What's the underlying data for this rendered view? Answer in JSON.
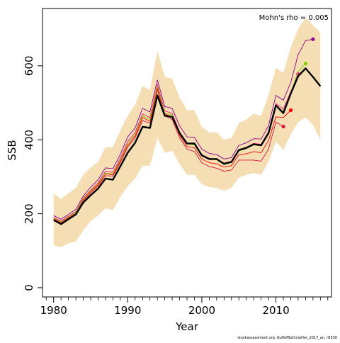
{
  "chart_data": {
    "type": "line",
    "xlabel": "Year",
    "ylabel": "SSB",
    "annotation": "Mohn's rho = 0.005",
    "credit": "stockassessment.org, GulfofBothniaHer_2017_an, r8330",
    "xlim": [
      1978.5,
      2017.5
    ],
    "ylim": [
      -25,
      755
    ],
    "xticks": [
      1980,
      1990,
      2000,
      2010
    ],
    "yticks": [
      0,
      200,
      400,
      600
    ],
    "colors": {
      "band": "#f5deb3",
      "base": "#000000",
      "peels": [
        "#dc143c",
        "#ff0000",
        "#ff1493",
        "#7fd000",
        "#8a008a"
      ]
    },
    "confidence_band": {
      "x": [
        1980,
        1981,
        1982,
        1983,
        1984,
        1985,
        1986,
        1987,
        1988,
        1989,
        1990,
        1991,
        1992,
        1993,
        1994,
        1995,
        1996,
        1997,
        1998,
        1999,
        2000,
        2001,
        2002,
        2003,
        2004,
        2005,
        2006,
        2007,
        2008,
        2009,
        2010,
        2011,
        2012,
        2013,
        2014,
        2015,
        2016
      ],
      "upper": [
        255,
        240,
        255,
        270,
        305,
        325,
        340,
        380,
        380,
        425,
        465,
        495,
        545,
        535,
        640,
        570,
        565,
        515,
        480,
        480,
        435,
        420,
        420,
        400,
        405,
        445,
        455,
        470,
        465,
        520,
        595,
        580,
        650,
        700,
        730,
        710,
        690
      ],
      "lower": [
        115,
        110,
        120,
        125,
        155,
        180,
        195,
        215,
        210,
        245,
        275,
        295,
        330,
        330,
        405,
        365,
        370,
        335,
        305,
        305,
        280,
        272,
        270,
        262,
        270,
        298,
        305,
        310,
        305,
        340,
        395,
        372,
        415,
        448,
        460,
        440,
        400
      ]
    },
    "base_series": {
      "name": "",
      "x": [
        1980,
        1981,
        1982,
        1983,
        1984,
        1985,
        1986,
        1987,
        1988,
        1989,
        1990,
        1991,
        1992,
        1993,
        1994,
        1995,
        1996,
        1997,
        1998,
        1999,
        2000,
        2001,
        2002,
        2003,
        2004,
        2005,
        2006,
        2007,
        2008,
        2009,
        2010,
        2011,
        2012,
        2013,
        2014,
        2015,
        2016
      ],
      "y": [
        183,
        172,
        185,
        198,
        230,
        250,
        268,
        295,
        292,
        328,
        365,
        392,
        435,
        432,
        520,
        465,
        462,
        418,
        390,
        390,
        358,
        348,
        348,
        335,
        340,
        372,
        378,
        388,
        385,
        418,
        493,
        472,
        525,
        572,
        593,
        570,
        545
      ]
    },
    "peels": [
      {
        "x": [
          1980,
          1981,
          1982,
          1983,
          1984,
          1985,
          1986,
          1987,
          1988,
          1989,
          1990,
          1991,
          1992,
          1993,
          1994,
          1995,
          1996,
          1997,
          1998,
          1999,
          2000,
          2001,
          2002,
          2003,
          2004,
          2005,
          2006,
          2007,
          2008,
          2009,
          2010,
          2011
        ],
        "y": [
          185,
          175,
          188,
          200,
          235,
          256,
          275,
          303,
          302,
          338,
          380,
          405,
          452,
          445,
          535,
          465,
          455,
          405,
          375,
          368,
          338,
          328,
          323,
          315,
          318,
          345,
          345,
          345,
          342,
          375,
          448,
          436
        ]
      },
      {
        "x": [
          1980,
          1981,
          1982,
          1983,
          1984,
          1985,
          1986,
          1987,
          1988,
          1989,
          1990,
          1991,
          1992,
          1993,
          1994,
          1995,
          1996,
          1997,
          1998,
          1999,
          2000,
          2001,
          2002,
          2003,
          2004,
          2005,
          2006,
          2007,
          2008,
          2009,
          2010,
          2011,
          2012
        ],
        "y": [
          187,
          177,
          190,
          203,
          238,
          260,
          278,
          308,
          305,
          342,
          385,
          410,
          460,
          450,
          540,
          470,
          462,
          412,
          382,
          378,
          348,
          338,
          335,
          326,
          330,
          360,
          362,
          368,
          365,
          398,
          462,
          460,
          480
        ]
      },
      {
        "x": [
          1980,
          1981,
          1982,
          1983,
          1984,
          1985,
          1986,
          1987,
          1988,
          1989,
          1990,
          1991,
          1992,
          1993,
          1994,
          1995,
          1996,
          1997,
          1998,
          1999,
          2000,
          2001,
          2002,
          2003,
          2004,
          2005,
          2006,
          2007,
          2008,
          2009,
          2010,
          2011,
          2012,
          2013
        ],
        "y": [
          190,
          180,
          193,
          206,
          242,
          264,
          284,
          314,
          312,
          350,
          395,
          420,
          470,
          460,
          550,
          478,
          472,
          422,
          392,
          388,
          360,
          350,
          348,
          337,
          342,
          373,
          380,
          390,
          388,
          422,
          498,
          483,
          530,
          578
        ]
      },
      {
        "x": [
          1980,
          1981,
          1982,
          1983,
          1984,
          1985,
          1986,
          1987,
          1988,
          1989,
          1990,
          1991,
          1992,
          1993,
          1994,
          1995,
          1996,
          1997,
          1998,
          1999,
          2000,
          2001,
          2002,
          2003,
          2004,
          2005,
          2006,
          2007,
          2008,
          2009,
          2010,
          2011,
          2012,
          2013,
          2014
        ],
        "y": [
          188,
          178,
          191,
          204,
          240,
          262,
          281,
          310,
          308,
          345,
          390,
          415,
          465,
          455,
          545,
          472,
          468,
          420,
          390,
          386,
          356,
          347,
          346,
          333,
          338,
          370,
          376,
          386,
          384,
          418,
          494,
          476,
          528,
          585,
          606
        ]
      },
      {
        "x": [
          1980,
          1981,
          1982,
          1983,
          1984,
          1985,
          1986,
          1987,
          1988,
          1989,
          1990,
          1991,
          1992,
          1993,
          1994,
          1995,
          1996,
          1997,
          1998,
          1999,
          2000,
          2001,
          2002,
          2003,
          2004,
          2005,
          2006,
          2007,
          2008,
          2009,
          2010,
          2011,
          2012,
          2013,
          2014,
          2015
        ],
        "y": [
          195,
          185,
          198,
          212,
          248,
          272,
          292,
          324,
          322,
          360,
          408,
          432,
          485,
          475,
          562,
          490,
          485,
          438,
          408,
          406,
          375,
          363,
          360,
          348,
          352,
          385,
          392,
          403,
          402,
          438,
          520,
          507,
          555,
          630,
          668,
          672
        ]
      }
    ]
  }
}
